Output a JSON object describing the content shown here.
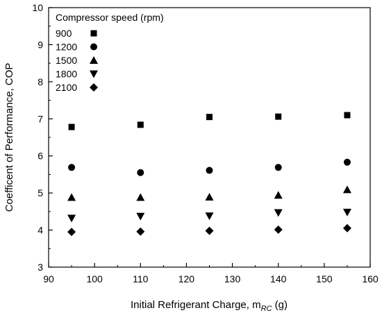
{
  "chart_data": {
    "type": "scatter",
    "xlabel": "Initial Refrigerant Charge, m",
    "xlabel_subscript": "RC",
    "xlabel_unit": "(g)",
    "ylabel": "Coefficent of Performance, COP",
    "xlim": [
      90,
      160
    ],
    "ylim": [
      3,
      10
    ],
    "x_ticks": [
      90,
      100,
      110,
      120,
      130,
      140,
      150,
      160
    ],
    "y_ticks": [
      3,
      4,
      5,
      6,
      7,
      8,
      9,
      10
    ],
    "grid": false,
    "legend_title": "Compressor speed (rpm)",
    "legend_position": "top-left",
    "x": [
      95,
      110,
      125,
      140,
      155
    ],
    "series": [
      {
        "name": "900",
        "marker": "square",
        "values": [
          6.78,
          6.84,
          7.05,
          7.06,
          7.1
        ]
      },
      {
        "name": "1200",
        "marker": "circle",
        "values": [
          5.69,
          5.55,
          5.61,
          5.69,
          5.83
        ]
      },
      {
        "name": "1500",
        "marker": "triangle-up",
        "values": [
          4.88,
          4.88,
          4.89,
          4.94,
          5.09
        ]
      },
      {
        "name": "1800",
        "marker": "triangle-down",
        "values": [
          4.32,
          4.37,
          4.38,
          4.47,
          4.48
        ]
      },
      {
        "name": "2100",
        "marker": "diamond",
        "values": [
          3.95,
          3.96,
          3.98,
          4.01,
          4.05
        ]
      }
    ],
    "marker_color": "#000000"
  }
}
